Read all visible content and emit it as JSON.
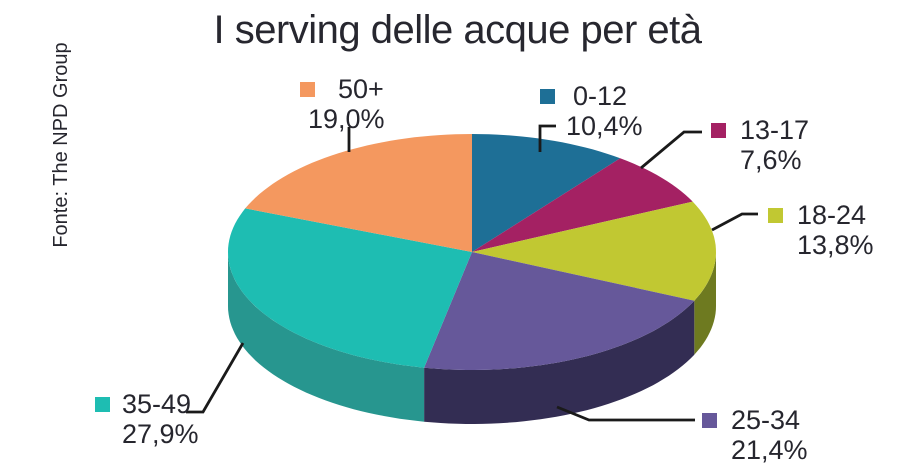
{
  "title": "I serving delle acque per età",
  "source": "Fonte: The NPD Group",
  "chart_data": {
    "type": "pie",
    "title": "I serving delle acque per età",
    "unit": "%",
    "effect": "3d",
    "start_angle_deg": 0,
    "direction": "clockwise",
    "legend_position": "around-slices-with-leader-lines",
    "categories": [
      "0-12",
      "13-17",
      "18-24",
      "25-34",
      "35-49",
      "50+"
    ],
    "values": [
      10.4,
      7.6,
      13.8,
      21.4,
      27.9,
      19.0
    ],
    "labels_formatted": [
      "10,4%",
      "7,6%",
      "13,8%",
      "21,4%",
      "27,9%",
      "19,0%"
    ],
    "colors": [
      "#1E6F96",
      "#A42163",
      "#C1C832",
      "#66589A",
      "#1EBDB2",
      "#F4985F"
    ],
    "side_colors": [
      "#123F5C",
      "#6B1440",
      "#6E7A20",
      "#332D53",
      "#27968F",
      "#A85F3C"
    ],
    "leader_line_color": "#1a1a1a"
  }
}
